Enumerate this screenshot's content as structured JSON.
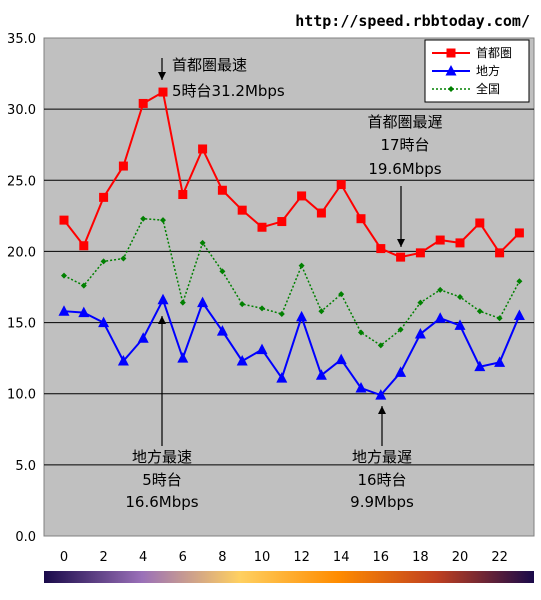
{
  "header": {
    "url": "http://speed.rbbtoday.com/"
  },
  "chart_data": {
    "type": "line",
    "x": [
      0,
      1,
      2,
      3,
      4,
      5,
      6,
      7,
      8,
      9,
      10,
      11,
      12,
      13,
      14,
      15,
      16,
      17,
      18,
      19,
      20,
      21,
      22,
      23
    ],
    "xticks": [
      "0",
      "2",
      "4",
      "6",
      "8",
      "10",
      "12",
      "14",
      "16",
      "18",
      "20",
      "22"
    ],
    "ylim": [
      0,
      35
    ],
    "yticks": [
      "0.0",
      "5.0",
      "10.0",
      "15.0",
      "20.0",
      "25.0",
      "30.0",
      "35.0"
    ],
    "grid": true,
    "legend_position": "top-right",
    "series": [
      {
        "name": "首都圏",
        "color": "#ff0000",
        "marker": "square",
        "values": [
          22.2,
          20.4,
          23.8,
          26.0,
          30.4,
          31.2,
          24.0,
          27.2,
          24.3,
          22.9,
          21.7,
          22.1,
          23.9,
          22.7,
          24.7,
          22.3,
          20.2,
          19.6,
          19.9,
          20.8,
          20.6,
          22.0,
          19.9,
          21.3
        ]
      },
      {
        "name": "地方",
        "color": "#0000ff",
        "marker": "triangle",
        "values": [
          15.8,
          15.7,
          15.0,
          12.3,
          13.9,
          16.6,
          12.5,
          16.4,
          14.4,
          12.3,
          13.1,
          11.1,
          15.4,
          11.3,
          12.4,
          10.4,
          9.9,
          11.5,
          14.2,
          15.3,
          14.8,
          11.9,
          12.2,
          15.5
        ]
      },
      {
        "name": "全国",
        "color": "#008000",
        "marker": "diamond",
        "values": [
          18.3,
          17.6,
          19.3,
          19.5,
          22.3,
          22.2,
          16.4,
          20.6,
          18.6,
          16.3,
          16.0,
          15.6,
          19.0,
          15.8,
          17.0,
          14.3,
          13.4,
          14.5,
          16.4,
          17.3,
          16.8,
          15.8,
          15.3,
          17.9
        ]
      }
    ],
    "annotations": [
      {
        "lines": [
          "首都圏最速",
          "5時台31.2Mbps"
        ],
        "x": 5,
        "y": 31.2
      },
      {
        "lines": [
          "首都圏最遅",
          "17時台",
          "19.6Mbps"
        ],
        "x": 17,
        "y": 19.6
      },
      {
        "lines": [
          "地方最速",
          "5時台",
          "16.6Mbps"
        ],
        "x": 5,
        "y": 16.6
      },
      {
        "lines": [
          "地方最遅",
          "16時台",
          "9.9Mbps"
        ],
        "x": 16,
        "y": 9.9
      }
    ],
    "time_gradient_colors": [
      "#1a0a4a",
      "#9a70b8",
      "#ffd060",
      "#ff8c00",
      "#c04020",
      "#1a0a4a"
    ]
  }
}
